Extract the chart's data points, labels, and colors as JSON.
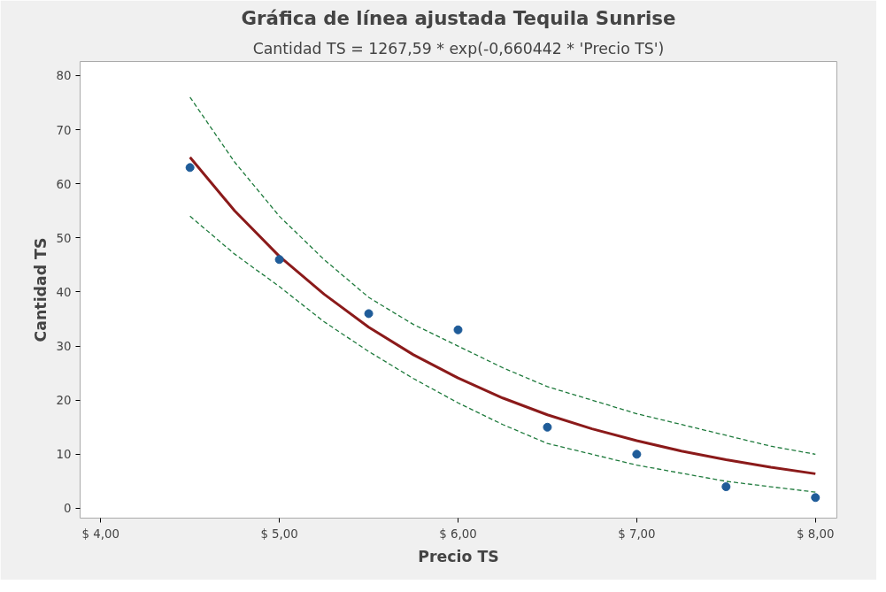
{
  "chart_data": {
    "type": "scatter",
    "title": "Gráfica de línea ajustada Tequila Sunrise",
    "subtitle": "Cantidad TS = 1267,59 * exp(-0,660442 * 'Precio TS')",
    "xlabel": "Precio TS",
    "ylabel": "Cantidad TS",
    "xlim": [
      3.885,
      8.12
    ],
    "ylim": [
      -1.8,
      82.6
    ],
    "xticks": [
      {
        "value": 4,
        "label": "$ 4,00"
      },
      {
        "value": 5,
        "label": "$ 5,00"
      },
      {
        "value": 6,
        "label": "$ 6,00"
      },
      {
        "value": 7,
        "label": "$ 7,00"
      },
      {
        "value": 8,
        "label": "$ 8,00"
      }
    ],
    "yticks": [
      0,
      10,
      20,
      30,
      40,
      50,
      60,
      70,
      80
    ],
    "grid": false,
    "series": [
      {
        "type": "line",
        "color": "#1e7a3c",
        "line_style": "dashed",
        "x": [
          4.5,
          4.75,
          5.0,
          5.25,
          5.5,
          5.75,
          6.0,
          6.25,
          6.5,
          6.75,
          7.0,
          7.25,
          7.5,
          7.75,
          8.0
        ],
        "values": [
          76,
          64,
          54,
          46,
          39,
          34,
          30,
          26,
          22.5,
          20,
          17.5,
          15.5,
          13.5,
          11.5,
          10
        ]
      },
      {
        "type": "line",
        "color": "#1e7a3c",
        "line_style": "dashed",
        "x": [
          4.5,
          4.75,
          5.0,
          5.25,
          5.5,
          5.75,
          6.0,
          6.25,
          6.5,
          6.75,
          7.0,
          7.25,
          7.5,
          7.75,
          8.0
        ],
        "values": [
          54,
          47,
          41,
          34.5,
          29,
          24,
          19.5,
          15.5,
          12,
          10,
          8,
          6.5,
          5,
          4,
          3
        ]
      },
      {
        "type": "line",
        "color": "#8b1a1a",
        "line_style": "solid",
        "x": [
          4.5,
          4.75,
          5.0,
          5.25,
          5.5,
          5.75,
          6.0,
          6.25,
          6.5,
          6.75,
          7.0,
          7.25,
          7.5,
          7.75,
          8.0
        ],
        "values": [
          64.9,
          55.0,
          46.6,
          39.6,
          33.5,
          28.4,
          24.1,
          20.4,
          17.3,
          14.7,
          12.5,
          10.6,
          9.0,
          7.6,
          6.4
        ]
      },
      {
        "color": "#1f5c99",
        "marker": "circle",
        "x": [
          4.5,
          5.0,
          5.5,
          6.0,
          6.5,
          7.0,
          7.5,
          8.0
        ],
        "values": [
          63,
          46,
          36,
          33,
          15,
          10,
          4,
          2
        ]
      }
    ]
  }
}
